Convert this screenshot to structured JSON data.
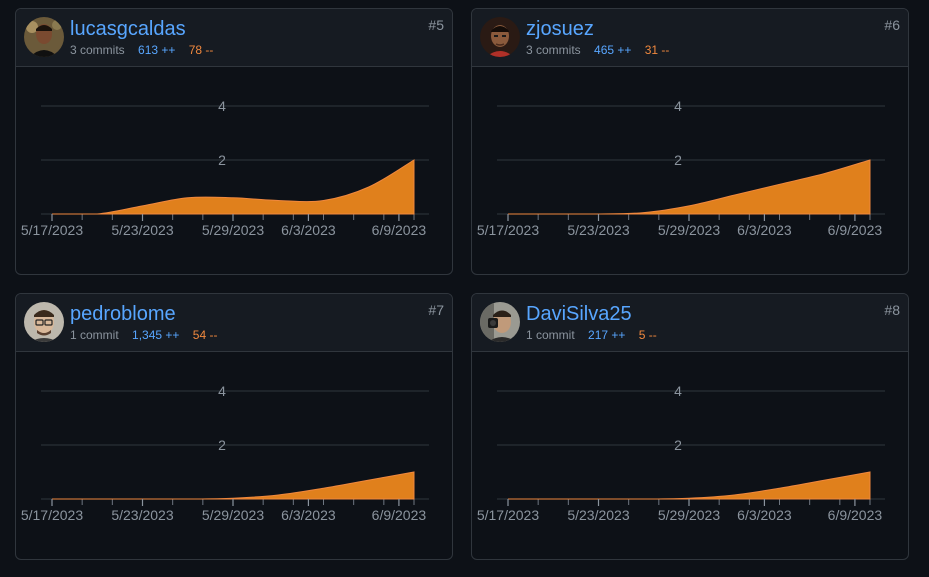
{
  "colors": {
    "accent_blue": "#58a6ff",
    "area_orange": "#e0801c",
    "deletions_orange": "#f0883e",
    "muted": "#8b949e",
    "grid": "#30363d"
  },
  "contributors": [
    {
      "username": "lucasgcaldas",
      "commits": "3 commits",
      "additions": "613 ++",
      "deletions": "78 --",
      "rank": "#5",
      "avatar_icon": "user-avatar-icon",
      "chart_data": {
        "type": "area",
        "x": [
          "5/17/2023",
          "5/20/2023",
          "5/23/2023",
          "5/26/2023",
          "5/29/2023",
          "6/1/2023",
          "6/4/2023",
          "6/7/2023",
          "6/10/2023"
        ],
        "values": [
          0,
          0,
          0.3,
          0.6,
          0.6,
          0.5,
          0.5,
          1.0,
          2
        ],
        "xticks": [
          "5/17/2023",
          "5/23/2023",
          "5/29/2023",
          "6/3/2023",
          "6/9/2023"
        ],
        "yticks": [
          "2",
          "4"
        ],
        "ylim": [
          0,
          4
        ]
      }
    },
    {
      "username": "zjosuez",
      "commits": "3 commits",
      "additions": "465 ++",
      "deletions": "31 --",
      "rank": "#6",
      "avatar_icon": "user-avatar-icon",
      "chart_data": {
        "type": "area",
        "x": [
          "5/17/2023",
          "5/20/2023",
          "5/23/2023",
          "5/26/2023",
          "5/29/2023",
          "6/1/2023",
          "6/4/2023",
          "6/7/2023",
          "6/10/2023"
        ],
        "values": [
          0,
          0,
          0,
          0.05,
          0.3,
          0.7,
          1.1,
          1.5,
          2
        ],
        "xticks": [
          "5/17/2023",
          "5/23/2023",
          "5/29/2023",
          "6/3/2023",
          "6/9/2023"
        ],
        "yticks": [
          "2",
          "4"
        ],
        "ylim": [
          0,
          4
        ]
      }
    },
    {
      "username": "pedroblome",
      "commits": "1 commit",
      "additions": "1,345 ++",
      "deletions": "54 --",
      "rank": "#7",
      "avatar_icon": "user-avatar-icon",
      "chart_data": {
        "type": "area",
        "x": [
          "5/17/2023",
          "5/20/2023",
          "5/23/2023",
          "5/26/2023",
          "5/29/2023",
          "6/1/2023",
          "6/4/2023",
          "6/7/2023",
          "6/10/2023"
        ],
        "values": [
          0,
          0,
          0,
          0,
          0.03,
          0.15,
          0.4,
          0.7,
          1
        ],
        "xticks": [
          "5/17/2023",
          "5/23/2023",
          "5/29/2023",
          "6/3/2023",
          "6/9/2023"
        ],
        "yticks": [
          "2",
          "4"
        ],
        "ylim": [
          0,
          4
        ]
      }
    },
    {
      "username": "DaviSilva25",
      "commits": "1 commit",
      "additions": "217 ++",
      "deletions": "5 --",
      "rank": "#8",
      "avatar_icon": "user-avatar-icon",
      "chart_data": {
        "type": "area",
        "x": [
          "5/17/2023",
          "5/20/2023",
          "5/23/2023",
          "5/26/2023",
          "5/29/2023",
          "6/1/2023",
          "6/4/2023",
          "6/7/2023",
          "6/10/2023"
        ],
        "values": [
          0,
          0,
          0,
          0,
          0.03,
          0.15,
          0.4,
          0.7,
          1
        ],
        "xticks": [
          "5/17/2023",
          "5/23/2023",
          "5/29/2023",
          "6/3/2023",
          "6/9/2023"
        ],
        "yticks": [
          "2",
          "4"
        ],
        "ylim": [
          0,
          4
        ]
      }
    }
  ]
}
